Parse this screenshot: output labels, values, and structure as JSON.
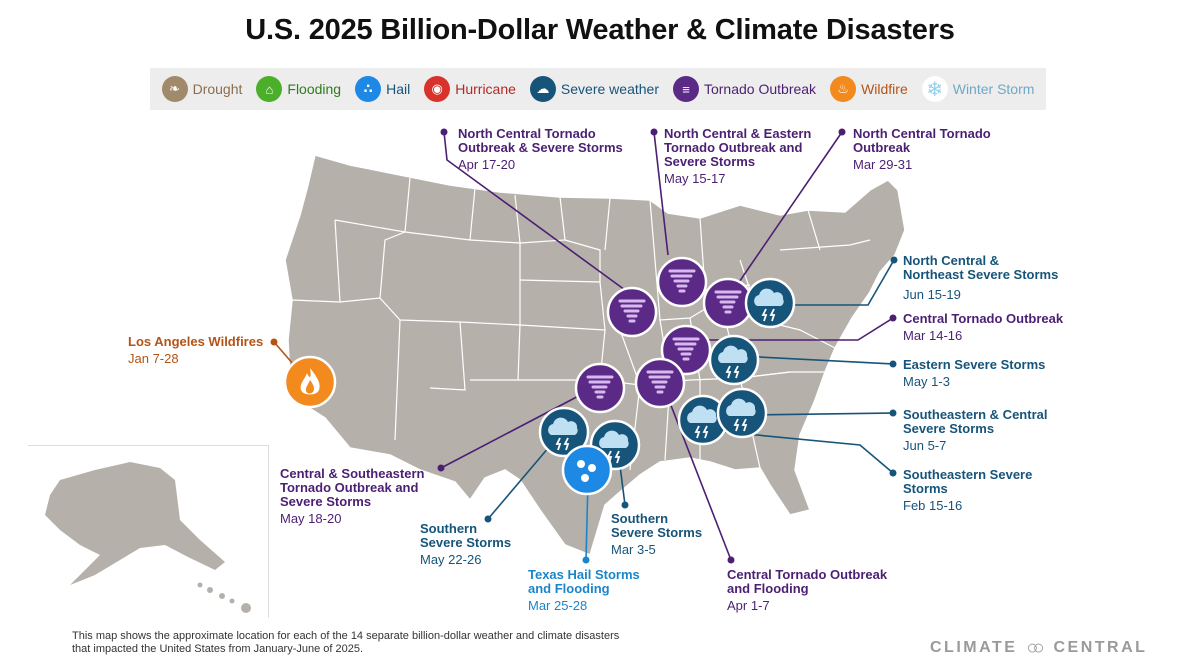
{
  "title": "U.S. 2025 Billion-Dollar Weather & Climate Disasters",
  "legend": [
    {
      "label": "Drought",
      "icon": "drought-icon",
      "color": "#a1896c",
      "text_color": "#8a6f4e"
    },
    {
      "label": "Flooding",
      "icon": "flooding-icon",
      "color": "#4caf2a",
      "text_color": "#2e7d1a"
    },
    {
      "label": "Hail",
      "icon": "hail-icon",
      "color": "#1e88e5",
      "text_color": "#17547a"
    },
    {
      "label": "Hurricane",
      "icon": "hurricane-icon",
      "color": "#d7322c",
      "text_color": "#b02a25"
    },
    {
      "label": "Severe weather",
      "icon": "severe-weather-icon",
      "color": "#17547a",
      "text_color": "#17547a"
    },
    {
      "label": "Tornado Outbreak",
      "icon": "tornado-icon",
      "color": "#5b2a86",
      "text_color": "#4b1f73"
    },
    {
      "label": "Wildfire",
      "icon": "wildfire-icon",
      "color": "#f28a1e",
      "text_color": "#b55316"
    },
    {
      "label": "Winter Storm",
      "icon": "winter-storm-icon",
      "color": "#8fd0ef",
      "text_color": "#6fa8c7"
    }
  ],
  "events": [
    {
      "name": "North Central Tornado Outbreak & Severe Storms",
      "line1": "North Central Tornado",
      "line2": "Outbreak & Severe Storms",
      "line3": "",
      "dates": "Apr 17-20",
      "type": "tornado"
    },
    {
      "name": "North Central & Eastern Tornado Outbreak and Severe Storms",
      "line1": "North Central & Eastern",
      "line2": "Tornado Outbreak and",
      "line3": "Severe Storms",
      "dates": "May 15-17",
      "type": "tornado"
    },
    {
      "name": "North Central Tornado Outbreak",
      "line1": "North Central Tornado",
      "line2": "Outbreak",
      "line3": "",
      "dates": "Mar 29-31",
      "type": "tornado"
    },
    {
      "name": "North Central & Northeast Severe Storms",
      "line1": "North Central &",
      "line2": "Northeast Severe Storms",
      "line3": "",
      "dates": "Jun 15-19",
      "type": "severe"
    },
    {
      "name": "Central Tornado Outbreak",
      "line1": "Central Tornado Outbreak",
      "line2": "",
      "line3": "",
      "dates": "Mar 14-16",
      "type": "tornado"
    },
    {
      "name": "Eastern Severe Storms",
      "line1": "Eastern Severe Storms",
      "line2": "",
      "line3": "",
      "dates": "May 1-3",
      "type": "severe"
    },
    {
      "name": "Southeastern & Central Severe Storms",
      "line1": "Southeastern & Central",
      "line2": "Severe Storms",
      "line3": "",
      "dates": "Jun 5-7",
      "type": "severe"
    },
    {
      "name": "Southeastern Severe Storms",
      "line1": "Southeastern Severe",
      "line2": "Storms",
      "line3": "",
      "dates": "Feb 15-16",
      "type": "severe"
    },
    {
      "name": "Central Tornado Outbreak and Flooding",
      "line1": "Central Tornado Outbreak",
      "line2": "and Flooding",
      "line3": "",
      "dates": "Apr 1-7",
      "type": "tornado"
    },
    {
      "name": "Southern Severe Storms",
      "line1": "Southern",
      "line2": "Severe Storms",
      "line3": "",
      "dates": "Mar 3-5",
      "type": "severe"
    },
    {
      "name": "Texas Hail Storms and Flooding",
      "line1": "Texas Hail Storms",
      "line2": "and Flooding",
      "line3": "",
      "dates": "Mar 25-28",
      "type": "hail"
    },
    {
      "name": "Southern Severe Storms",
      "line1": "Southern",
      "line2": "Severe Storms",
      "line3": "",
      "dates": "May 22-26",
      "type": "severe"
    },
    {
      "name": "Central & Southeastern Tornado Outbreak and Severe Storms",
      "line1": "Central & Southeastern",
      "line2": "Tornado Outbreak and",
      "line3": "Severe Storms",
      "dates": "May 18-20",
      "type": "tornado"
    },
    {
      "name": "Los Angeles Wildfires",
      "line1": "Los Angeles Wildfires",
      "line2": "",
      "line3": "",
      "dates": "Jan 7-28",
      "type": "wildfire"
    }
  ],
  "footnote": {
    "line1": "This map shows the approximate location for each of the 14 separate billion-dollar weather and climate disasters",
    "line2": "that impacted the United States from January-June of 2025."
  },
  "brand": {
    "left": "CLIMATE",
    "right": "CENTRAL"
  },
  "colors": {
    "map_fill": "#b5b1aa",
    "state_border": "#ffffff",
    "tornado": "#5b2a86",
    "severe": "#17547a",
    "hail": "#1e88e5",
    "wildfire": "#f28a1e"
  }
}
